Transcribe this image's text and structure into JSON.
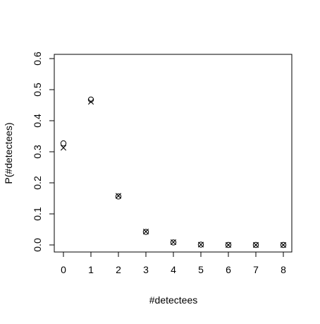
{
  "chart_data": {
    "type": "scatter",
    "title": "",
    "xlabel": "#detectees",
    "ylabel": "P(#detectees)",
    "xlim": [
      0,
      8
    ],
    "ylim": [
      0,
      0.6
    ],
    "xticks": [
      "0",
      "1",
      "2",
      "3",
      "4",
      "5",
      "6",
      "7",
      "8"
    ],
    "yticks": [
      "0.0",
      "0.1",
      "0.2",
      "0.3",
      "0.4",
      "0.5",
      "0.6"
    ],
    "grid": false,
    "legend": "none",
    "x": [
      0,
      1,
      2,
      3,
      4,
      5,
      6,
      7,
      8
    ],
    "series": [
      {
        "marker": "circle",
        "values": [
          0.327,
          0.468,
          0.156,
          0.042,
          0.008,
          0.001,
          0.0,
          0.0,
          0.0
        ]
      },
      {
        "marker": "cross",
        "values": [
          0.313,
          0.461,
          0.158,
          0.043,
          0.009,
          0.001,
          0.0,
          0.0,
          0.0
        ]
      }
    ]
  }
}
